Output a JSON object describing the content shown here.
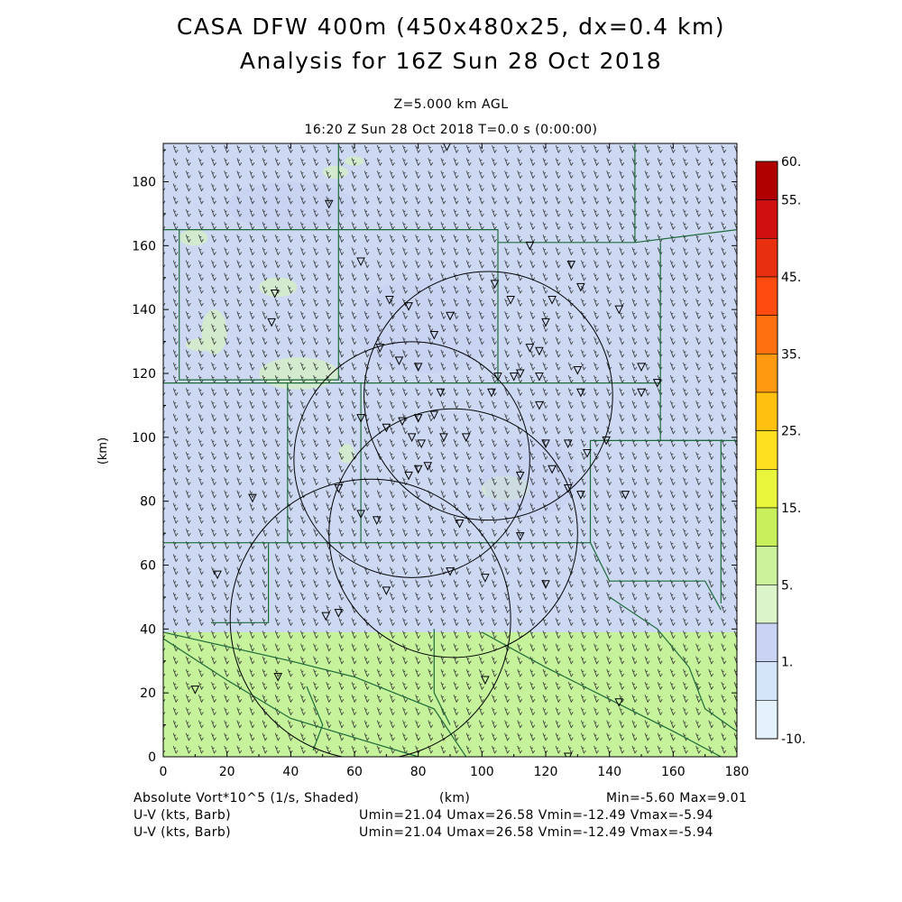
{
  "title": {
    "line1": "CASA DFW 400m (450x480x25, dx=0.4 km)",
    "line2": "Analysis for 16Z Sun 28 Oct 2018"
  },
  "subtitle": {
    "level": "Z=5.000 km AGL",
    "time": "16:20 Z Sun 28 Oct 2018    T=0.0 s (0:00:00)"
  },
  "axes": {
    "x_label": "(km)",
    "y_label": "(km)",
    "x_ticks": [
      "0",
      "20",
      "40",
      "60",
      "80",
      "100",
      "120",
      "140",
      "160",
      "180"
    ],
    "y_ticks": [
      "0",
      "20",
      "40",
      "60",
      "80",
      "100",
      "120",
      "140",
      "160",
      "180"
    ],
    "x_range": [
      0,
      180
    ],
    "y_range": [
      0,
      192
    ]
  },
  "colorbar": {
    "labels": [
      "60.",
      "55.",
      "45.",
      "35.",
      "25.",
      "15.",
      "5.",
      "1.",
      "-10."
    ],
    "colors": [
      "#b00000",
      "#d01010",
      "#e83010",
      "#ff4a10",
      "#ff7010",
      "#ff9a10",
      "#ffc010",
      "#ffe020",
      "#e8f53a",
      "#c8f05a",
      "#c9f29a",
      "#dbf5c8",
      "#c9d4f5",
      "#d4e4f8",
      "#e4f2fb"
    ]
  },
  "field_colors": {
    "north": "#cdd9f3",
    "south": "#c6f29b",
    "patch": "#d4edc6",
    "blue_patch": "#c5cdf2",
    "county_lines": "#1d6b3a"
  },
  "footer": {
    "field1": "Absolute Vort*10^5 (1/s, Shaded)",
    "field1_unit": "(km)",
    "minmax": "Min=-5.60 Max=9.01",
    "field2": "U-V (kts, Barb)",
    "field2_stats": "Umin=21.04 Umax=26.58 Vmin=-12.49 Vmax=-5.94",
    "field3": "U-V (kts, Barb)",
    "field3_stats": "Umin=21.04 Umax=26.58 Vmin=-12.49 Vmax=-5.94"
  },
  "chart_data": {
    "type": "heatmap",
    "field": "Absolute Vort*10^5 (1/s, Shaded)",
    "min": -5.6,
    "max": 9.01,
    "xlim": [
      0,
      180
    ],
    "ylim": [
      0,
      192
    ],
    "xlabel": "(km)",
    "ylabel": "(km)",
    "wind": {
      "umin": 21.04,
      "umax": 26.58,
      "vmin": -12.49,
      "vmax": -5.94
    },
    "radar_rings_km": [
      {
        "cx": 102,
        "cy": 113,
        "r": 39
      },
      {
        "cx": 78,
        "cy": 93,
        "r": 37
      },
      {
        "cx": 91,
        "cy": 70,
        "r": 39
      },
      {
        "cx": 65,
        "cy": 43,
        "r": 44
      }
    ],
    "stations_km": [
      [
        89,
        191
      ],
      [
        52,
        173
      ],
      [
        62,
        155
      ],
      [
        115,
        160
      ],
      [
        128,
        154
      ],
      [
        104,
        148
      ],
      [
        122,
        143
      ],
      [
        109,
        143
      ],
      [
        71,
        143
      ],
      [
        35,
        145
      ],
      [
        77,
        141
      ],
      [
        131,
        147
      ],
      [
        143,
        140
      ],
      [
        90,
        138
      ],
      [
        120,
        136
      ],
      [
        34,
        136
      ],
      [
        85,
        132
      ],
      [
        68,
        128
      ],
      [
        115,
        128
      ],
      [
        118,
        127
      ],
      [
        74,
        124
      ],
      [
        80,
        122
      ],
      [
        130,
        121
      ],
      [
        112,
        120
      ],
      [
        118,
        119
      ],
      [
        105,
        119
      ],
      [
        110,
        119
      ],
      [
        150,
        122
      ],
      [
        155,
        117
      ],
      [
        87,
        114
      ],
      [
        103,
        114
      ],
      [
        118,
        110
      ],
      [
        131,
        114
      ],
      [
        150,
        114
      ],
      [
        62,
        106
      ],
      [
        70,
        103
      ],
      [
        75,
        105
      ],
      [
        80,
        106
      ],
      [
        85,
        107
      ],
      [
        78,
        100
      ],
      [
        81,
        98
      ],
      [
        88,
        100
      ],
      [
        95,
        100
      ],
      [
        120,
        98
      ],
      [
        127,
        98
      ],
      [
        133,
        95
      ],
      [
        139,
        99
      ],
      [
        122,
        90
      ],
      [
        77,
        88
      ],
      [
        80,
        90
      ],
      [
        83,
        91
      ],
      [
        112,
        88
      ],
      [
        127,
        84
      ],
      [
        131,
        82
      ],
      [
        145,
        82
      ],
      [
        55,
        84
      ],
      [
        28,
        81
      ],
      [
        62,
        76
      ],
      [
        67,
        74
      ],
      [
        93,
        73
      ],
      [
        112,
        69
      ],
      [
        90,
        58
      ],
      [
        101,
        56
      ],
      [
        120,
        54
      ],
      [
        70,
        52
      ],
      [
        17,
        57
      ],
      [
        55,
        45
      ],
      [
        51,
        44
      ],
      [
        36,
        25
      ],
      [
        101,
        24
      ],
      [
        143,
        17
      ],
      [
        10,
        21
      ],
      [
        127,
        0
      ]
    ]
  }
}
